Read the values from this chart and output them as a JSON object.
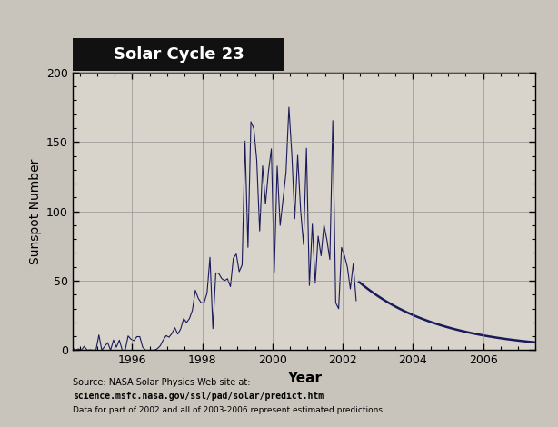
{
  "title": "Solar Cycle 23",
  "xlabel": "Year",
  "ylabel": "Sunspot Number",
  "xlim": [
    1994.3,
    2007.5
  ],
  "ylim": [
    0,
    200
  ],
  "yticks": [
    0,
    50,
    100,
    150,
    200
  ],
  "xticks": [
    1996,
    1998,
    2000,
    2002,
    2004,
    2006
  ],
  "background_color": "#c8c4bc",
  "plot_bg_color": "#d8d4cc",
  "line_color": "#1a1a5a",
  "source_line1": "Source: NASA Solar Physics Web site at:",
  "source_line2": "science.msfc.nasa.gov/ssl/pad/solar/predict.htm",
  "source_line3": "Data for part of 2002 and all of 2003-2006 represent estimated predictions.",
  "title_box_color": "#111111",
  "title_text_color": "#ffffff",
  "obs_cutoff": 2002.4,
  "pred_start": 2002.4
}
